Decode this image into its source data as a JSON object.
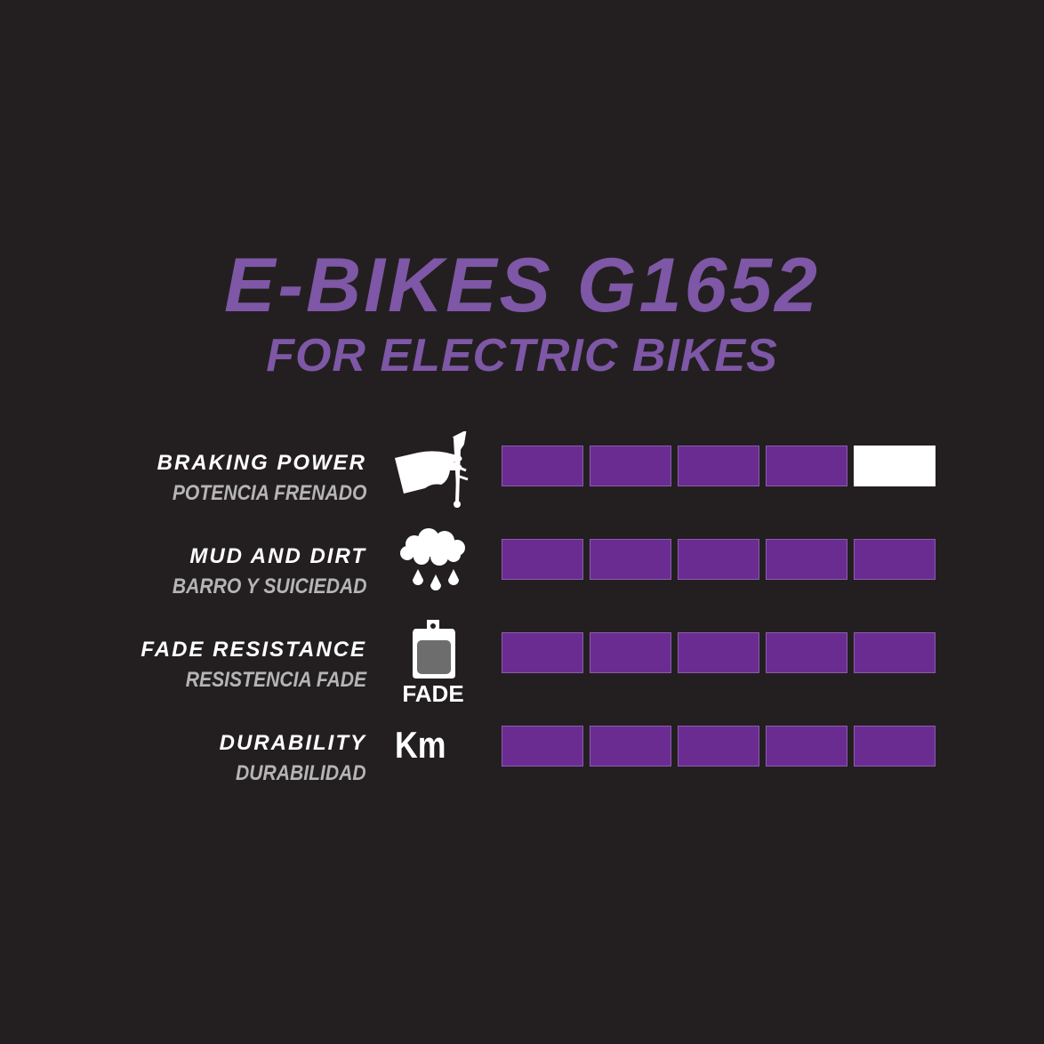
{
  "title": "E-BIKES G1652",
  "subtitle": "FOR ELECTRIC BIKES",
  "colors": {
    "background": "#231f20",
    "title": "#7e57a6",
    "bar_filled": "#6b2c91",
    "bar_empty": "#ffffff"
  },
  "rows": [
    {
      "label_en": "BRAKING POWER",
      "label_es": "POTENCIA FRENADO",
      "icon": "hand-brake-lever-icon",
      "rating": 4,
      "max": 5
    },
    {
      "label_en": "MUD AND DIRT",
      "label_es": "BARRO Y SUICIEDAD",
      "icon": "rain-cloud-icon",
      "rating": 5,
      "max": 5
    },
    {
      "label_en": "FADE RESISTANCE",
      "label_es": "RESISTENCIA FADE",
      "icon": "brake-pad-icon",
      "icon_text": "FADE",
      "rating": 5,
      "max": 5
    },
    {
      "label_en": "DURABILITY",
      "label_es": "DURABILIDAD",
      "icon": "km-icon",
      "icon_text": "Km",
      "rating": 5,
      "max": 5
    }
  ]
}
